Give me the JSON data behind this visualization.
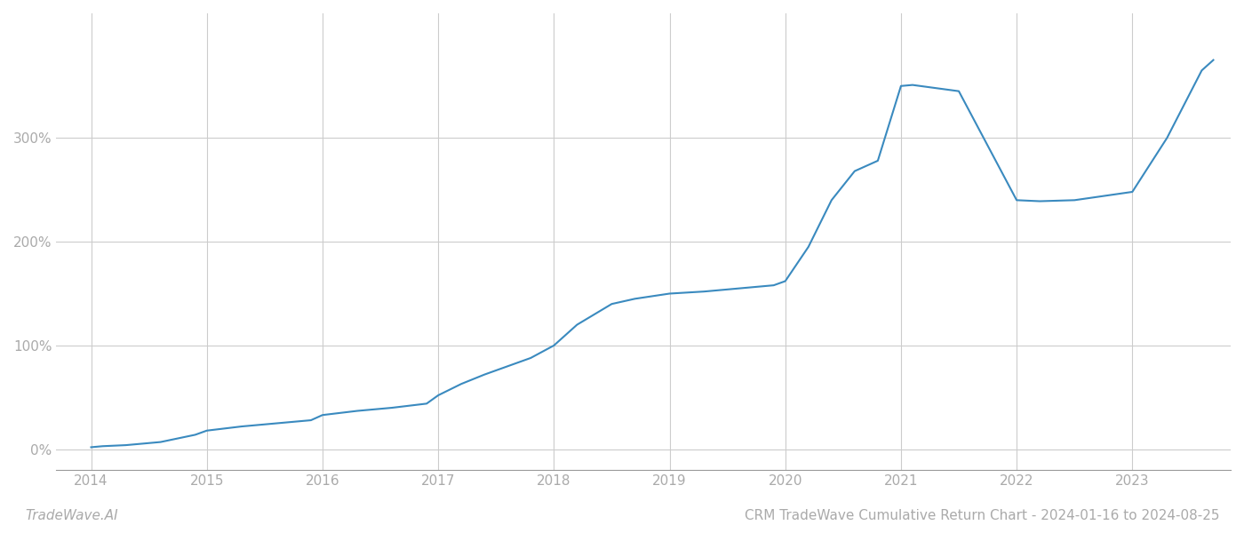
{
  "title": "CRM TradeWave Cumulative Return Chart - 2024-01-16 to 2024-08-25",
  "watermark": "TradeWave.AI",
  "line_color": "#3a8abf",
  "background_color": "#ffffff",
  "grid_color": "#cccccc",
  "x_values": [
    2014.0,
    2014.1,
    2014.3,
    2014.6,
    2014.9,
    2015.0,
    2015.3,
    2015.6,
    2015.9,
    2016.0,
    2016.3,
    2016.6,
    2016.9,
    2017.0,
    2017.2,
    2017.4,
    2017.6,
    2017.8,
    2018.0,
    2018.2,
    2018.5,
    2018.7,
    2019.0,
    2019.3,
    2019.6,
    2019.9,
    2020.0,
    2020.2,
    2020.4,
    2020.6,
    2020.8,
    2021.0,
    2021.1,
    2021.5,
    2022.0,
    2022.2,
    2022.5,
    2023.0,
    2023.3,
    2023.6,
    2023.7
  ],
  "y_values": [
    2,
    3,
    4,
    7,
    14,
    18,
    22,
    25,
    28,
    33,
    37,
    40,
    44,
    52,
    63,
    72,
    80,
    88,
    100,
    120,
    140,
    145,
    150,
    152,
    155,
    158,
    162,
    195,
    240,
    268,
    278,
    350,
    351,
    345,
    240,
    239,
    240,
    248,
    300,
    365,
    375
  ],
  "xlim": [
    2013.7,
    2023.85
  ],
  "ylim": [
    -20,
    420
  ],
  "yticks": [
    0,
    100,
    200,
    300
  ],
  "ytick_labels": [
    "0%",
    "100%",
    "200%",
    "300%"
  ],
  "xticks": [
    2014,
    2015,
    2016,
    2017,
    2018,
    2019,
    2020,
    2021,
    2022,
    2023
  ],
  "xtick_labels": [
    "2014",
    "2015",
    "2016",
    "2017",
    "2018",
    "2019",
    "2020",
    "2021",
    "2022",
    "2023"
  ],
  "tick_color": "#aaaaaa",
  "spine_color": "#999999",
  "title_fontsize": 11,
  "tick_fontsize": 11,
  "watermark_fontsize": 11,
  "line_width": 1.5
}
